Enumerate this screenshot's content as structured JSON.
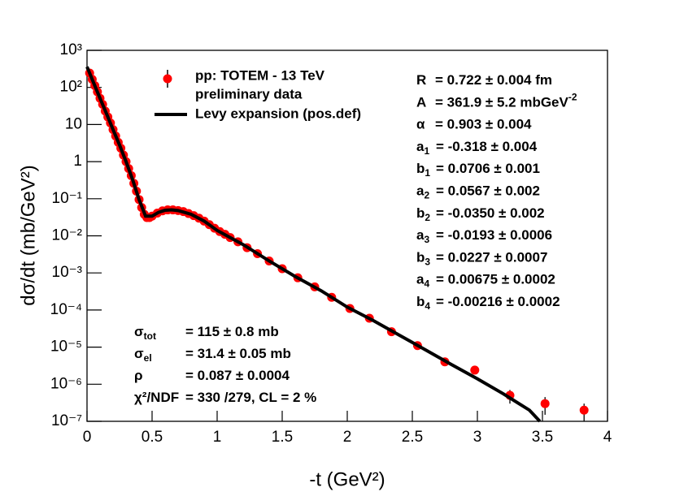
{
  "chart_data": {
    "type": "scatter",
    "x_label": "-t (GeV²)",
    "y_label": "dσ/dt (mb/GeV²)",
    "xlim": [
      0,
      4
    ],
    "ylim": [
      1e-07,
      1000
    ],
    "log_y": true,
    "xticks": [
      0,
      0.5,
      1,
      1.5,
      2,
      2.5,
      3,
      3.5,
      4
    ],
    "yticks": [
      {
        "value": 1000,
        "label": "10³"
      },
      {
        "value": 100,
        "label": "10²"
      },
      10,
      1,
      {
        "value": 0.1,
        "label": "10⁻¹"
      },
      {
        "value": 0.01,
        "label": "10⁻²"
      },
      {
        "value": 0.001,
        "label": "10⁻³"
      },
      {
        "value": 0.0001,
        "label": "10⁻⁴"
      },
      {
        "value": 1e-05,
        "label": "10⁻⁵"
      },
      {
        "value": 1e-06,
        "label": "10⁻⁶"
      },
      {
        "value": 1e-07,
        "label": "10⁻⁷"
      }
    ],
    "series": [
      {
        "name": "pp: TOTEM - 13 TeV",
        "legend_subtitle": "preliminary data",
        "type": "scatter",
        "color": "#ff0000",
        "x": [
          0.02,
          0.04,
          0.06,
          0.08,
          0.1,
          0.12,
          0.14,
          0.16,
          0.18,
          0.2,
          0.22,
          0.24,
          0.26,
          0.28,
          0.3,
          0.32,
          0.34,
          0.36,
          0.38,
          0.4,
          0.42,
          0.44,
          0.46,
          0.48,
          0.5,
          0.54,
          0.58,
          0.62,
          0.66,
          0.7,
          0.74,
          0.78,
          0.82,
          0.86,
          0.9,
          0.94,
          0.98,
          1.02,
          1.06,
          1.1,
          1.16,
          1.23,
          1.31,
          1.4,
          1.5,
          1.62,
          1.75,
          1.88,
          2.02,
          2.17,
          2.34,
          2.54,
          2.75,
          2.98,
          3.25,
          3.52,
          3.82
        ],
        "values": [
          244,
          165,
          112,
          76,
          51,
          35,
          23,
          16,
          11,
          7.3,
          4.9,
          3.3,
          2.3,
          1.5,
          1.0,
          0.65,
          0.42,
          0.26,
          0.16,
          0.095,
          0.058,
          0.038,
          0.031,
          0.031,
          0.034,
          0.041,
          0.047,
          0.05,
          0.05,
          0.048,
          0.045,
          0.04,
          0.035,
          0.03,
          0.025,
          0.02,
          0.016,
          0.013,
          0.011,
          0.009,
          0.0069,
          0.0048,
          0.0033,
          0.0021,
          0.0013,
          0.00074,
          0.00042,
          0.00022,
          0.00011,
          6e-05,
          2.6e-05,
          1.1e-05,
          4e-06,
          2.4e-06,
          5e-07,
          3e-07,
          2e-07
        ],
        "errors": [
          60,
          null,
          null,
          null,
          null,
          null,
          null,
          null,
          null,
          null,
          null,
          null,
          null,
          null,
          null,
          null,
          null,
          null,
          null,
          null,
          null,
          null,
          null,
          null,
          null,
          null,
          null,
          null,
          null,
          null,
          null,
          null,
          null,
          null,
          null,
          null,
          null,
          null,
          null,
          null,
          null,
          null,
          null,
          null,
          null,
          null,
          null,
          null,
          null,
          null,
          null,
          null,
          null,
          null,
          2e-07,
          1.5e-07,
          1e-07
        ]
      },
      {
        "name": "Levy expansion (pos.def)",
        "type": "line",
        "color": "#000000",
        "x": [
          0,
          0.05,
          0.1,
          0.15,
          0.2,
          0.25,
          0.3,
          0.35,
          0.4,
          0.45,
          0.5,
          0.55,
          0.6,
          0.65,
          0.7,
          0.8,
          0.9,
          1.0,
          1.2,
          1.4,
          1.6,
          1.8,
          2.0,
          2.2,
          2.4,
          2.6,
          2.8,
          3.0,
          3.2,
          3.4,
          3.48
        ],
        "values": [
          360,
          135,
          51,
          19.5,
          7.3,
          2.8,
          1.0,
          0.33,
          0.095,
          0.034,
          0.034,
          0.043,
          0.049,
          0.05,
          0.048,
          0.038,
          0.025,
          0.014,
          0.0058,
          0.0021,
          0.0008,
          0.00033,
          0.00012,
          5.2e-05,
          2.1e-05,
          8.5e-06,
          3.4e-06,
          1.4e-06,
          5.5e-07,
          2e-07,
          1e-07
        ]
      }
    ],
    "fit_parameters": [
      {
        "symbol": "R",
        "text": "= 0.722 ± 0.004 fm"
      },
      {
        "symbol": "A",
        "text": "= 361.9 ± 5.2 mbGeV",
        "sup": "-2"
      },
      {
        "symbol": "α",
        "text": "= 0.903 ± 0.004"
      },
      {
        "symbol": "a",
        "sub": "1",
        "text": "= -0.318 ± 0.004"
      },
      {
        "symbol": "b",
        "sub": "1",
        "text": "= 0.0706 ± 0.001"
      },
      {
        "symbol": "a",
        "sub": "2",
        "text": "= 0.0567 ± 0.002"
      },
      {
        "symbol": "b",
        "sub": "2",
        "text": "= -0.0350 ± 0.002"
      },
      {
        "symbol": "a",
        "sub": "3",
        "text": "= -0.0193 ± 0.0006"
      },
      {
        "symbol": "b",
        "sub": "3",
        "text": "= 0.0227 ± 0.0007"
      },
      {
        "symbol": "a",
        "sub": "4",
        "text": "= 0.00675 ± 0.0002"
      },
      {
        "symbol": "b",
        "sub": "4",
        "text": "= -0.00216 ± 0.0002"
      }
    ],
    "results": [
      {
        "symbol": "σ",
        "sub": "tot",
        "text": "= 115 ± 0.8 mb"
      },
      {
        "symbol": "σ",
        "sub": "el",
        "text": "= 31.4 ± 0.05 mb"
      },
      {
        "symbol": "ρ",
        "text": "= 0.087 ± 0.0004"
      },
      {
        "symbol": "χ²/NDF",
        "text": "= 330 /279,  CL = 2 %"
      }
    ]
  }
}
